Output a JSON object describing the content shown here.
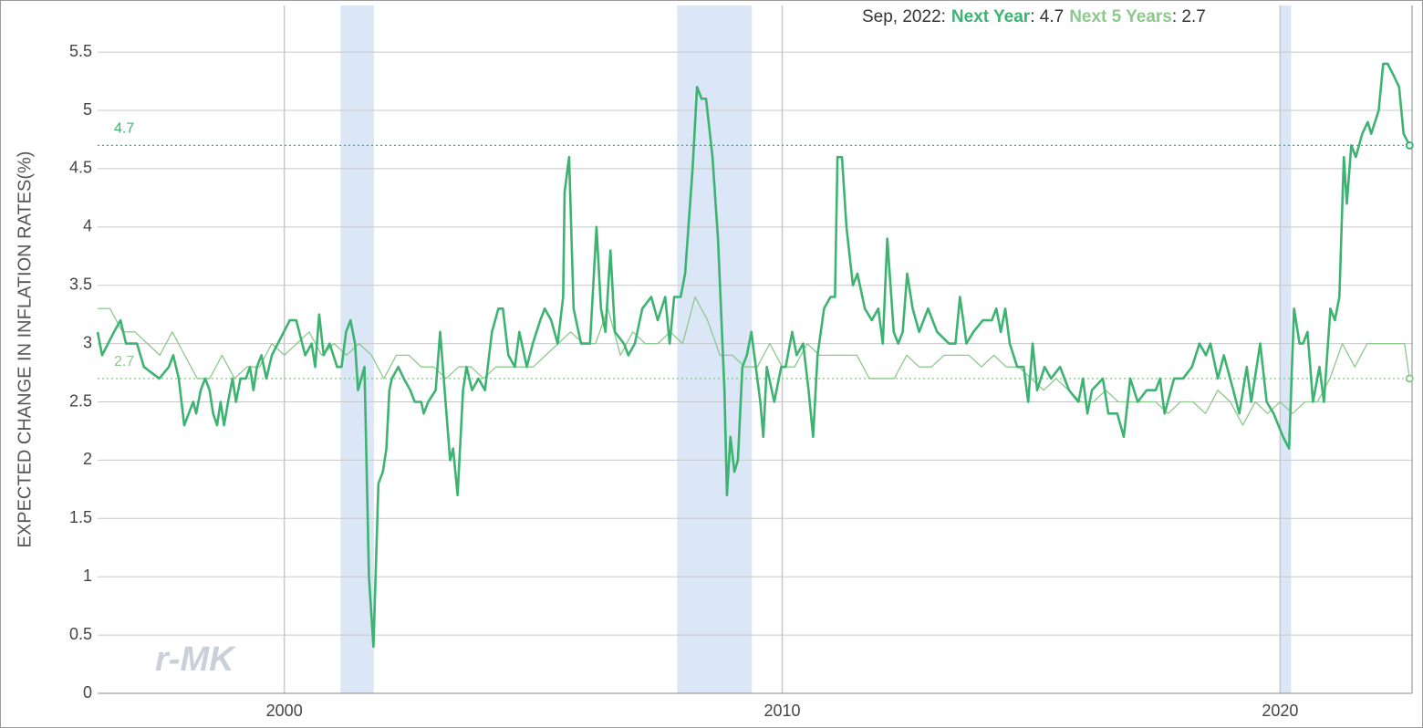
{
  "chart_data": {
    "type": "line",
    "y_label": "EXPECTED CHANGE IN INFLATION RATES(%)",
    "watermark": "r-MK",
    "header_parts": [
      "Sep, 2022:",
      ": 4.7",
      ": 2.7"
    ],
    "xlim": [
      1996.25,
      2022.65
    ],
    "xticks": [
      2000,
      2010,
      2020
    ],
    "ylim": [
      0,
      5.9
    ],
    "yticks": [
      0,
      0.5,
      1,
      1.5,
      2,
      2.5,
      3,
      3.5,
      4,
      4.5,
      5,
      5.5
    ],
    "grid": true,
    "shaded_periods": [
      {
        "start": 2001.13,
        "end": 2001.8,
        "color": "#dbe6f7"
      },
      {
        "start": 2007.89,
        "end": 2009.39,
        "color": "#dbe6f7"
      },
      {
        "start": 2020.0,
        "end": 2020.22,
        "color": "#dbe6f7"
      }
    ],
    "reference_lines": [
      {
        "value": 4.7,
        "color": "#3db371"
      },
      {
        "value": 2.7,
        "color": "#8cc98c"
      }
    ],
    "series": [
      {
        "name": "Next Year",
        "color": "#3db371",
        "width": 2.6,
        "x": [
          1996.25,
          1996.34,
          1996.58,
          1996.71,
          1996.82,
          1997.04,
          1997.18,
          1997.49,
          1997.68,
          1997.77,
          1997.88,
          1997.99,
          1998.08,
          1998.17,
          1998.23,
          1998.32,
          1998.41,
          1998.5,
          1998.57,
          1998.65,
          1998.72,
          1998.79,
          1998.87,
          1998.96,
          1999.03,
          1999.12,
          1999.23,
          1999.31,
          1999.38,
          1999.45,
          1999.54,
          1999.64,
          1999.75,
          1999.87,
          2000.11,
          2000.24,
          2000.42,
          2000.55,
          2000.62,
          2000.7,
          2000.79,
          2000.91,
          2001.06,
          2001.15,
          2001.24,
          2001.33,
          2001.42,
          2001.48,
          2001.61,
          2001.7,
          2001.79,
          2001.89,
          2001.98,
          2002.05,
          2002.11,
          2002.16,
          2002.29,
          2002.4,
          2002.53,
          2002.62,
          2002.75,
          2002.8,
          2002.89,
          2003.04,
          2003.13,
          2003.22,
          2003.33,
          2003.39,
          2003.48,
          2003.59,
          2003.66,
          2003.77,
          2003.9,
          2004.03,
          2004.17,
          2004.3,
          2004.39,
          2004.5,
          2004.63,
          2004.72,
          2004.87,
          2004.99,
          2005.14,
          2005.23,
          2005.36,
          2005.49,
          2005.6,
          2005.63,
          2005.72,
          2005.81,
          2005.96,
          2006.14,
          2006.27,
          2006.36,
          2006.45,
          2006.55,
          2006.64,
          2006.82,
          2006.91,
          2007.04,
          2007.19,
          2007.37,
          2007.5,
          2007.65,
          2007.74,
          2007.83,
          2007.96,
          2008.05,
          2008.2,
          2008.29,
          2008.38,
          2008.47,
          2008.6,
          2008.71,
          2008.84,
          2008.89,
          2008.96,
          2009.04,
          2009.11,
          2009.2,
          2009.29,
          2009.38,
          2009.47,
          2009.56,
          2009.62,
          2009.69,
          2009.84,
          2009.98,
          2010.07,
          2010.2,
          2010.29,
          2010.42,
          2010.53,
          2010.62,
          2010.71,
          2010.84,
          2010.97,
          2011.06,
          2011.11,
          2011.2,
          2011.29,
          2011.42,
          2011.51,
          2011.66,
          2011.8,
          2011.93,
          2012.02,
          2012.11,
          2012.24,
          2012.33,
          2012.42,
          2012.51,
          2012.62,
          2012.75,
          2012.93,
          2013.11,
          2013.35,
          2013.48,
          2013.57,
          2013.7,
          2013.84,
          2014.03,
          2014.21,
          2014.3,
          2014.39,
          2014.48,
          2014.57,
          2014.72,
          2014.85,
          2014.94,
          2015.03,
          2015.12,
          2015.27,
          2015.4,
          2015.58,
          2015.76,
          2015.95,
          2016.04,
          2016.13,
          2016.22,
          2016.44,
          2016.55,
          2016.73,
          2016.86,
          2016.99,
          2017.14,
          2017.32,
          2017.5,
          2017.59,
          2017.68,
          2017.87,
          2018.05,
          2018.23,
          2018.38,
          2018.51,
          2018.6,
          2018.75,
          2018.87,
          2019.06,
          2019.18,
          2019.33,
          2019.42,
          2019.6,
          2019.73,
          2019.87,
          2020.06,
          2020.18,
          2020.28,
          2020.39,
          2020.46,
          2020.55,
          2020.66,
          2020.79,
          2020.88,
          2021.01,
          2021.1,
          2021.19,
          2021.28,
          2021.34,
          2021.43,
          2021.52,
          2021.65,
          2021.76,
          2021.83,
          2021.98,
          2022.07,
          2022.16,
          2022.28,
          2022.39,
          2022.48,
          2022.6
        ],
        "values": [
          3.1,
          2.9,
          3.1,
          3.2,
          3.0,
          3.0,
          2.8,
          2.7,
          2.8,
          2.9,
          2.7,
          2.3,
          2.4,
          2.5,
          2.4,
          2.6,
          2.7,
          2.6,
          2.4,
          2.3,
          2.5,
          2.3,
          2.5,
          2.7,
          2.5,
          2.7,
          2.7,
          2.8,
          2.6,
          2.8,
          2.9,
          2.7,
          2.9,
          3.0,
          3.2,
          3.2,
          2.9,
          3.0,
          2.8,
          3.25,
          2.9,
          3.0,
          2.8,
          2.8,
          3.1,
          3.2,
          3.0,
          2.6,
          2.8,
          1.0,
          0.4,
          1.8,
          1.9,
          2.1,
          2.6,
          2.7,
          2.8,
          2.7,
          2.6,
          2.5,
          2.5,
          2.4,
          2.5,
          2.6,
          3.1,
          2.6,
          2.0,
          2.1,
          1.7,
          2.6,
          2.8,
          2.6,
          2.7,
          2.6,
          3.1,
          3.3,
          3.3,
          2.9,
          2.8,
          3.1,
          2.8,
          3.0,
          3.2,
          3.3,
          3.2,
          3.0,
          3.4,
          4.3,
          4.6,
          3.3,
          3.0,
          3.0,
          4.0,
          3.3,
          3.1,
          3.8,
          3.1,
          3.0,
          2.9,
          3.0,
          3.3,
          3.4,
          3.2,
          3.4,
          3.0,
          3.4,
          3.4,
          3.6,
          4.5,
          5.2,
          5.1,
          5.1,
          4.6,
          3.9,
          2.6,
          1.7,
          2.2,
          1.9,
          2.0,
          2.8,
          2.9,
          3.1,
          2.8,
          2.5,
          2.2,
          2.8,
          2.5,
          2.8,
          2.8,
          3.1,
          2.9,
          3.0,
          2.6,
          2.2,
          2.9,
          3.3,
          3.4,
          3.4,
          4.6,
          4.6,
          4.0,
          3.5,
          3.6,
          3.3,
          3.2,
          3.3,
          3.0,
          3.9,
          3.1,
          3.0,
          3.1,
          3.6,
          3.3,
          3.1,
          3.3,
          3.1,
          3.0,
          3.0,
          3.4,
          3.0,
          3.1,
          3.2,
          3.2,
          3.3,
          3.1,
          3.3,
          3.0,
          2.8,
          2.8,
          2.5,
          3.0,
          2.6,
          2.8,
          2.7,
          2.8,
          2.6,
          2.5,
          2.7,
          2.4,
          2.6,
          2.7,
          2.4,
          2.4,
          2.2,
          2.7,
          2.5,
          2.6,
          2.6,
          2.7,
          2.4,
          2.7,
          2.7,
          2.8,
          3.0,
          2.9,
          3.0,
          2.7,
          2.9,
          2.6,
          2.4,
          2.8,
          2.5,
          3.0,
          2.5,
          2.4,
          2.2,
          2.1,
          3.3,
          3.0,
          3.0,
          3.1,
          2.5,
          2.8,
          2.5,
          3.3,
          3.2,
          3.4,
          4.6,
          4.2,
          4.7,
          4.6,
          4.8,
          4.9,
          4.8,
          5.0,
          5.4,
          5.4,
          5.3,
          5.2,
          4.8,
          4.7
        ]
      },
      {
        "name": "Next 5 Years",
        "color": "#8cc98c",
        "width": 1.3,
        "x": [
          1996.25,
          1996.5,
          1996.75,
          1997.0,
          1997.25,
          1997.5,
          1997.75,
          1998.0,
          1998.25,
          1998.5,
          1998.75,
          1999.0,
          1999.25,
          1999.5,
          1999.75,
          2000.0,
          2000.25,
          2000.5,
          2000.75,
          2001.0,
          2001.25,
          2001.5,
          2001.75,
          2002.0,
          2002.25,
          2002.5,
          2002.75,
          2003.0,
          2003.25,
          2003.5,
          2003.75,
          2004.0,
          2004.25,
          2004.5,
          2004.75,
          2005.0,
          2005.25,
          2005.5,
          2005.75,
          2006.0,
          2006.25,
          2006.5,
          2006.75,
          2007.0,
          2007.25,
          2007.5,
          2007.75,
          2008.0,
          2008.25,
          2008.5,
          2008.75,
          2009.0,
          2009.25,
          2009.5,
          2009.75,
          2010.0,
          2010.25,
          2010.5,
          2010.75,
          2011.0,
          2011.25,
          2011.5,
          2011.75,
          2012.0,
          2012.25,
          2012.5,
          2012.75,
          2013.0,
          2013.25,
          2013.5,
          2013.75,
          2014.0,
          2014.25,
          2014.5,
          2014.75,
          2015.0,
          2015.25,
          2015.5,
          2015.75,
          2016.0,
          2016.25,
          2016.5,
          2016.75,
          2017.0,
          2017.25,
          2017.5,
          2017.75,
          2018.0,
          2018.25,
          2018.5,
          2018.75,
          2019.0,
          2019.25,
          2019.5,
          2019.75,
          2020.0,
          2020.25,
          2020.5,
          2020.75,
          2021.0,
          2021.25,
          2021.5,
          2021.75,
          2022.0,
          2022.25,
          2022.5,
          2022.6
        ],
        "values": [
          3.3,
          3.3,
          3.1,
          3.1,
          3.0,
          2.9,
          3.1,
          2.9,
          2.7,
          2.7,
          2.9,
          2.7,
          2.8,
          2.8,
          3.0,
          2.9,
          3.0,
          3.1,
          2.9,
          3.0,
          2.9,
          3.0,
          2.9,
          2.7,
          2.9,
          2.9,
          2.8,
          2.8,
          2.7,
          2.8,
          2.8,
          2.7,
          2.8,
          2.8,
          2.8,
          2.8,
          2.9,
          3.0,
          3.1,
          3.0,
          3.0,
          3.3,
          2.9,
          3.1,
          3.0,
          3.0,
          3.1,
          3.0,
          3.4,
          3.2,
          2.9,
          2.9,
          2.8,
          2.8,
          3.0,
          2.8,
          2.8,
          3.0,
          2.9,
          2.9,
          2.9,
          2.9,
          2.7,
          2.7,
          2.7,
          2.9,
          2.8,
          2.8,
          2.9,
          2.9,
          2.9,
          2.8,
          2.9,
          2.8,
          2.8,
          2.7,
          2.6,
          2.7,
          2.6,
          2.5,
          2.5,
          2.6,
          2.5,
          2.5,
          2.5,
          2.5,
          2.4,
          2.5,
          2.5,
          2.4,
          2.6,
          2.5,
          2.3,
          2.5,
          2.4,
          2.5,
          2.4,
          2.5,
          2.5,
          2.7,
          3.0,
          2.8,
          3.0,
          3.0,
          3.0,
          3.0,
          2.7
        ]
      }
    ]
  }
}
